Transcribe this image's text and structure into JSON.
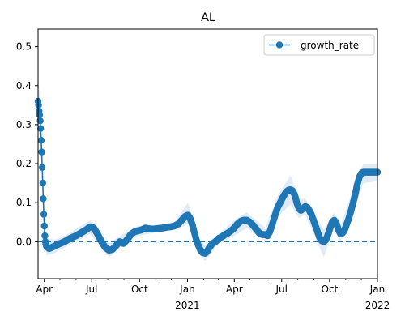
{
  "chart_data": {
    "type": "line",
    "title": "AL",
    "xlabel": "",
    "ylabel": "",
    "xlim": [
      "2020-03-20",
      "2022-01-01"
    ],
    "ylim": [
      -0.095,
      0.545
    ],
    "x_ticks": [
      {
        "date": "2020-04-01",
        "label": "Apr",
        "year_label": ""
      },
      {
        "date": "2020-07-01",
        "label": "Jul",
        "year_label": ""
      },
      {
        "date": "2020-10-01",
        "label": "Oct",
        "year_label": ""
      },
      {
        "date": "2021-01-01",
        "label": "Jan",
        "year_label": "2021"
      },
      {
        "date": "2021-04-01",
        "label": "Apr",
        "year_label": ""
      },
      {
        "date": "2021-07-01",
        "label": "Jul",
        "year_label": ""
      },
      {
        "date": "2021-10-01",
        "label": "Oct",
        "year_label": ""
      },
      {
        "date": "2022-01-01",
        "label": "Jan",
        "year_label": "2022"
      }
    ],
    "y_ticks": [
      "0.0",
      "0.1",
      "0.2",
      "0.3",
      "0.4",
      "0.5"
    ],
    "legend": {
      "position": "top-right",
      "entries": [
        "growth_rate"
      ]
    },
    "reference_line": {
      "y": 0.0,
      "style": "dashed"
    },
    "colors": {
      "series": "#1f77b4",
      "band": "#dbe8f6",
      "reference": "#1f77b4"
    },
    "series": [
      {
        "name": "growth_rate",
        "marker": "circle",
        "points": [
          [
            "2020-03-20",
            0.36
          ],
          [
            "2020-03-21",
            0.35
          ],
          [
            "2020-03-22",
            0.335
          ],
          [
            "2020-03-23",
            0.325
          ],
          [
            "2020-03-24",
            0.31
          ],
          [
            "2020-03-25",
            0.29
          ],
          [
            "2020-03-26",
            0.26
          ],
          [
            "2020-03-27",
            0.23
          ],
          [
            "2020-03-28",
            0.19
          ],
          [
            "2020-03-29",
            0.15
          ],
          [
            "2020-03-30",
            0.11
          ],
          [
            "2020-03-31",
            0.07
          ],
          [
            "2020-04-01",
            0.04
          ],
          [
            "2020-04-02",
            0.015
          ],
          [
            "2020-04-03",
            0.0
          ],
          [
            "2020-04-05",
            -0.012
          ],
          [
            "2020-04-10",
            -0.018
          ],
          [
            "2020-04-20",
            -0.012
          ],
          [
            "2020-05-01",
            -0.005
          ],
          [
            "2020-05-10",
            0.0
          ],
          [
            "2020-05-20",
            0.008
          ],
          [
            "2020-06-01",
            0.015
          ],
          [
            "2020-06-10",
            0.022
          ],
          [
            "2020-06-20",
            0.03
          ],
          [
            "2020-06-28",
            0.038
          ],
          [
            "2020-07-05",
            0.035
          ],
          [
            "2020-07-12",
            0.02
          ],
          [
            "2020-07-20",
            0.0
          ],
          [
            "2020-07-27",
            -0.015
          ],
          [
            "2020-08-03",
            -0.022
          ],
          [
            "2020-08-10",
            -0.02
          ],
          [
            "2020-08-17",
            -0.01
          ],
          [
            "2020-08-24",
            0.0
          ],
          [
            "2020-08-31",
            -0.005
          ],
          [
            "2020-09-07",
            0.005
          ],
          [
            "2020-09-14",
            0.018
          ],
          [
            "2020-09-21",
            0.025
          ],
          [
            "2020-09-28",
            0.028
          ],
          [
            "2020-10-05",
            0.03
          ],
          [
            "2020-10-12",
            0.035
          ],
          [
            "2020-10-19",
            0.033
          ],
          [
            "2020-10-26",
            0.032
          ],
          [
            "2020-11-02",
            0.033
          ],
          [
            "2020-11-09",
            0.034
          ],
          [
            "2020-11-16",
            0.035
          ],
          [
            "2020-11-23",
            0.037
          ],
          [
            "2020-11-30",
            0.038
          ],
          [
            "2020-12-07",
            0.04
          ],
          [
            "2020-12-14",
            0.045
          ],
          [
            "2020-12-21",
            0.055
          ],
          [
            "2020-12-28",
            0.065
          ],
          [
            "2021-01-02",
            0.068
          ],
          [
            "2021-01-06",
            0.06
          ],
          [
            "2021-01-10",
            0.045
          ],
          [
            "2021-01-14",
            0.025
          ],
          [
            "2021-01-18",
            0.005
          ],
          [
            "2021-01-22",
            -0.01
          ],
          [
            "2021-01-26",
            -0.022
          ],
          [
            "2021-01-30",
            -0.028
          ],
          [
            "2021-02-04",
            -0.03
          ],
          [
            "2021-02-08",
            -0.025
          ],
          [
            "2021-02-12",
            -0.015
          ],
          [
            "2021-02-18",
            -0.005
          ],
          [
            "2021-02-24",
            0.0
          ],
          [
            "2021-03-02",
            0.008
          ],
          [
            "2021-03-08",
            0.012
          ],
          [
            "2021-03-14",
            0.018
          ],
          [
            "2021-03-20",
            0.022
          ],
          [
            "2021-03-26",
            0.028
          ],
          [
            "2021-04-01",
            0.035
          ],
          [
            "2021-04-07",
            0.045
          ],
          [
            "2021-04-13",
            0.052
          ],
          [
            "2021-04-19",
            0.055
          ],
          [
            "2021-04-25",
            0.055
          ],
          [
            "2021-05-01",
            0.05
          ],
          [
            "2021-05-07",
            0.042
          ],
          [
            "2021-05-13",
            0.032
          ],
          [
            "2021-05-19",
            0.022
          ],
          [
            "2021-05-25",
            0.018
          ],
          [
            "2021-05-31",
            0.018
          ],
          [
            "2021-06-04",
            0.015
          ],
          [
            "2021-06-08",
            0.025
          ],
          [
            "2021-06-12",
            0.04
          ],
          [
            "2021-06-16",
            0.058
          ],
          [
            "2021-06-20",
            0.075
          ],
          [
            "2021-06-24",
            0.09
          ],
          [
            "2021-06-28",
            0.1
          ],
          [
            "2021-07-02",
            0.11
          ],
          [
            "2021-07-06",
            0.12
          ],
          [
            "2021-07-10",
            0.128
          ],
          [
            "2021-07-14",
            0.132
          ],
          [
            "2021-07-18",
            0.133
          ],
          [
            "2021-07-22",
            0.13
          ],
          [
            "2021-07-26",
            0.12
          ],
          [
            "2021-07-30",
            0.1
          ],
          [
            "2021-08-03",
            0.085
          ],
          [
            "2021-08-07",
            0.08
          ],
          [
            "2021-08-11",
            0.085
          ],
          [
            "2021-08-15",
            0.09
          ],
          [
            "2021-08-19",
            0.088
          ],
          [
            "2021-08-23",
            0.08
          ],
          [
            "2021-08-27",
            0.07
          ],
          [
            "2021-08-31",
            0.055
          ],
          [
            "2021-09-04",
            0.04
          ],
          [
            "2021-09-08",
            0.025
          ],
          [
            "2021-09-12",
            0.01
          ],
          [
            "2021-09-16",
            0.002
          ],
          [
            "2021-09-20",
            0.0
          ],
          [
            "2021-09-24",
            0.005
          ],
          [
            "2021-09-28",
            0.018
          ],
          [
            "2021-10-02",
            0.035
          ],
          [
            "2021-10-06",
            0.05
          ],
          [
            "2021-10-10",
            0.055
          ],
          [
            "2021-10-14",
            0.048
          ],
          [
            "2021-10-18",
            0.03
          ],
          [
            "2021-10-22",
            0.02
          ],
          [
            "2021-10-26",
            0.022
          ],
          [
            "2021-10-30",
            0.03
          ],
          [
            "2021-11-03",
            0.045
          ],
          [
            "2021-11-07",
            0.06
          ],
          [
            "2021-11-11",
            0.078
          ],
          [
            "2021-11-15",
            0.098
          ],
          [
            "2021-11-19",
            0.12
          ],
          [
            "2021-11-23",
            0.145
          ],
          [
            "2021-11-27",
            0.165
          ],
          [
            "2021-12-01",
            0.175
          ],
          [
            "2021-12-05",
            0.178
          ],
          [
            "2021-12-12",
            0.178
          ],
          [
            "2021-12-20",
            0.178
          ],
          [
            "2021-12-28",
            0.178
          ],
          [
            "2022-01-01",
            0.178
          ]
        ],
        "band": [
          [
            "2020-03-20",
            0.3,
            0.43
          ],
          [
            "2020-03-25",
            0.25,
            0.34
          ],
          [
            "2020-03-30",
            0.09,
            0.13
          ],
          [
            "2020-04-05",
            -0.035,
            0.01
          ],
          [
            "2020-04-20",
            -0.03,
            0.005
          ],
          [
            "2020-05-10",
            -0.015,
            0.015
          ],
          [
            "2020-06-28",
            0.02,
            0.055
          ],
          [
            "2020-07-20",
            -0.015,
            0.015
          ],
          [
            "2020-08-03",
            -0.04,
            -0.005
          ],
          [
            "2020-08-24",
            -0.015,
            0.015
          ],
          [
            "2020-09-28",
            0.015,
            0.04
          ],
          [
            "2020-10-26",
            0.022,
            0.042
          ],
          [
            "2020-12-07",
            0.03,
            0.05
          ],
          [
            "2021-01-02",
            0.045,
            0.1
          ],
          [
            "2021-01-22",
            -0.03,
            0.01
          ],
          [
            "2021-02-04",
            -0.05,
            -0.01
          ],
          [
            "2021-03-02",
            -0.005,
            0.02
          ],
          [
            "2021-04-01",
            0.015,
            0.055
          ],
          [
            "2021-04-25",
            0.035,
            0.075
          ],
          [
            "2021-05-31",
            0.0,
            0.035
          ],
          [
            "2021-06-24",
            0.065,
            0.12
          ],
          [
            "2021-07-18",
            0.095,
            0.17
          ],
          [
            "2021-08-03",
            0.06,
            0.11
          ],
          [
            "2021-08-15",
            0.07,
            0.11
          ],
          [
            "2021-09-20",
            -0.04,
            0.03
          ],
          [
            "2021-10-10",
            0.035,
            0.075
          ],
          [
            "2021-10-22",
            0.0,
            0.04
          ],
          [
            "2021-11-19",
            0.09,
            0.15
          ],
          [
            "2021-12-05",
            0.15,
            0.2
          ],
          [
            "2022-01-01",
            0.155,
            0.2
          ]
        ]
      }
    ]
  }
}
